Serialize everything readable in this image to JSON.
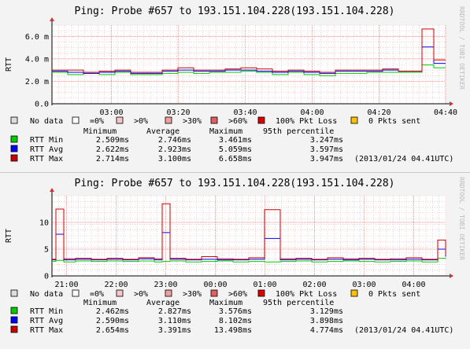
{
  "chart_data": [
    {
      "type": "line",
      "title": "Ping: Probe #657 to 193.151.104.228(193.151.104.228)",
      "ylabel": "RTT",
      "watermark": "RRDTOOL / TOBI OETIKER",
      "ylim": [
        0,
        7
      ],
      "xlim": [
        0,
        1
      ],
      "y_ticks": [
        {
          "value": 0,
          "label": "0.0"
        },
        {
          "value": 2,
          "label": "2.0 m"
        },
        {
          "value": 4,
          "label": "4.0 m"
        },
        {
          "value": 6,
          "label": "6.0 m"
        }
      ],
      "x_ticks": [
        {
          "value": 0.151,
          "label": "03:00"
        },
        {
          "value": 0.321,
          "label": "03:20"
        },
        {
          "value": 0.491,
          "label": "03:40"
        },
        {
          "value": 0.661,
          "label": "04:00"
        },
        {
          "value": 0.831,
          "label": "04:20"
        },
        {
          "value": 1.0,
          "label": "04:40"
        }
      ],
      "series": [
        {
          "name": "RTT Min",
          "color": "#00cc00",
          "x": [
            0,
            0.04,
            0.08,
            0.12,
            0.16,
            0.2,
            0.24,
            0.28,
            0.32,
            0.36,
            0.4,
            0.44,
            0.48,
            0.52,
            0.56,
            0.6,
            0.64,
            0.68,
            0.72,
            0.76,
            0.8,
            0.84,
            0.88,
            0.94,
            0.97,
            1.0
          ],
          "values": [
            2.8,
            2.6,
            2.7,
            2.6,
            2.8,
            2.6,
            2.6,
            2.7,
            2.8,
            2.7,
            2.8,
            2.8,
            2.9,
            2.8,
            2.6,
            2.8,
            2.6,
            2.5,
            2.7,
            2.7,
            2.8,
            2.8,
            2.8,
            3.46,
            3.2,
            3.2
          ]
        },
        {
          "name": "RTT Avg",
          "color": "#0000ff",
          "x": [
            0,
            0.04,
            0.08,
            0.12,
            0.16,
            0.2,
            0.24,
            0.28,
            0.32,
            0.36,
            0.4,
            0.44,
            0.48,
            0.52,
            0.56,
            0.6,
            0.64,
            0.68,
            0.72,
            0.76,
            0.8,
            0.84,
            0.88,
            0.94,
            0.97,
            1.0
          ],
          "values": [
            2.9,
            2.8,
            2.7,
            2.8,
            2.9,
            2.7,
            2.7,
            2.9,
            3.0,
            2.9,
            2.9,
            3.0,
            3.0,
            2.9,
            2.8,
            2.9,
            2.8,
            2.7,
            2.9,
            2.9,
            2.9,
            3.0,
            2.9,
            5.06,
            3.6,
            3.6
          ]
        },
        {
          "name": "RTT Max",
          "color": "#cc0000",
          "x": [
            0,
            0.04,
            0.08,
            0.12,
            0.16,
            0.2,
            0.24,
            0.28,
            0.32,
            0.36,
            0.4,
            0.44,
            0.48,
            0.52,
            0.56,
            0.6,
            0.64,
            0.68,
            0.72,
            0.76,
            0.8,
            0.84,
            0.88,
            0.94,
            0.97,
            1.0
          ],
          "values": [
            3.0,
            3.0,
            2.8,
            2.9,
            3.0,
            2.8,
            2.8,
            3.0,
            3.2,
            3.0,
            3.0,
            3.1,
            3.2,
            3.1,
            2.9,
            3.0,
            2.9,
            2.8,
            3.0,
            3.0,
            3.0,
            3.1,
            2.9,
            6.66,
            3.9,
            3.9
          ]
        }
      ],
      "legend_row": [
        {
          "label": "No data",
          "color": "#dddddd"
        },
        {
          "label": "=0%",
          "color": "#ffffff"
        },
        {
          "label": ">0%",
          "color": "#f5c6c6"
        },
        {
          "label": ">30%",
          "color": "#f0a0a0"
        },
        {
          "label": ">60%",
          "color": "#e06060"
        },
        {
          "label": "100% Pkt Loss",
          "color": "#dd0000"
        },
        {
          "label": "0 Pkts sent",
          "color": "#ffc000"
        }
      ],
      "stats_header": [
        "Minimum",
        "Average",
        "Maximum",
        "95th percentile"
      ],
      "stats": [
        {
          "name": "RTT Min",
          "color": "#00cc00",
          "min": "2.509ms",
          "avg": "2.746ms",
          "max": "3.461ms",
          "p95": "3.247ms",
          "note": ""
        },
        {
          "name": "RTT Avg",
          "color": "#0000ff",
          "min": "2.622ms",
          "avg": "2.923ms",
          "max": "5.059ms",
          "p95": "3.597ms",
          "note": ""
        },
        {
          "name": "RTT Max",
          "color": "#cc0000",
          "min": "2.714ms",
          "avg": "3.100ms",
          "max": "6.658ms",
          "p95": "3.947ms",
          "note": "(2013/01/24 04.41UTC)"
        }
      ]
    },
    {
      "type": "line",
      "title": "Ping: Probe #657 to 193.151.104.228(193.151.104.228)",
      "ylabel": "RTT",
      "watermark": "RRDTOOL / TOBI OETIKER",
      "ylim": [
        0,
        15
      ],
      "xlim": [
        0,
        1
      ],
      "y_ticks": [
        {
          "value": 0,
          "label": "0"
        },
        {
          "value": 5,
          "label": "5"
        },
        {
          "value": 10,
          "label": "10"
        }
      ],
      "x_ticks": [
        {
          "value": 0.037,
          "label": "21:00"
        },
        {
          "value": 0.163,
          "label": "22:00"
        },
        {
          "value": 0.289,
          "label": "23:00"
        },
        {
          "value": 0.415,
          "label": "00:00"
        },
        {
          "value": 0.541,
          "label": "01:00"
        },
        {
          "value": 0.667,
          "label": "02:00"
        },
        {
          "value": 0.793,
          "label": "03:00"
        },
        {
          "value": 0.919,
          "label": "04:00"
        }
      ],
      "series": [
        {
          "name": "RTT Min",
          "color": "#00cc00",
          "x": [
            0,
            0.01,
            0.03,
            0.06,
            0.1,
            0.14,
            0.18,
            0.22,
            0.26,
            0.28,
            0.3,
            0.34,
            0.38,
            0.42,
            0.46,
            0.5,
            0.54,
            0.58,
            0.62,
            0.66,
            0.7,
            0.74,
            0.78,
            0.82,
            0.86,
            0.9,
            0.94,
            0.98,
            1.0
          ],
          "values": [
            2.7,
            2.9,
            2.6,
            2.8,
            2.7,
            2.8,
            2.7,
            2.8,
            2.6,
            2.7,
            2.8,
            2.6,
            2.7,
            2.8,
            2.6,
            2.7,
            2.6,
            2.7,
            2.8,
            2.6,
            2.7,
            2.8,
            2.7,
            2.6,
            2.7,
            2.8,
            2.6,
            3.3,
            3.2
          ]
        },
        {
          "name": "RTT Avg",
          "color": "#0000ff",
          "x": [
            0,
            0.01,
            0.03,
            0.06,
            0.1,
            0.14,
            0.18,
            0.22,
            0.26,
            0.28,
            0.3,
            0.34,
            0.38,
            0.42,
            0.46,
            0.5,
            0.54,
            0.58,
            0.62,
            0.66,
            0.7,
            0.74,
            0.78,
            0.82,
            0.86,
            0.9,
            0.94,
            0.98,
            1.0
          ],
          "values": [
            3.0,
            7.8,
            3.0,
            3.1,
            3.0,
            3.1,
            3.0,
            3.2,
            3.0,
            8.1,
            3.1,
            3.0,
            3.1,
            3.0,
            3.0,
            3.1,
            7.0,
            3.0,
            3.1,
            3.0,
            3.1,
            3.0,
            3.1,
            3.0,
            3.0,
            3.1,
            3.0,
            5.0,
            3.6
          ]
        },
        {
          "name": "RTT Max",
          "color": "#cc0000",
          "x": [
            0,
            0.01,
            0.03,
            0.06,
            0.1,
            0.14,
            0.18,
            0.22,
            0.26,
            0.28,
            0.3,
            0.34,
            0.38,
            0.42,
            0.46,
            0.5,
            0.54,
            0.58,
            0.62,
            0.66,
            0.7,
            0.74,
            0.78,
            0.82,
            0.86,
            0.9,
            0.94,
            0.98,
            1.0
          ],
          "values": [
            3.1,
            12.5,
            3.2,
            3.3,
            3.1,
            3.3,
            3.1,
            3.4,
            3.2,
            13.5,
            3.3,
            3.1,
            3.6,
            3.2,
            3.1,
            3.4,
            12.4,
            3.2,
            3.3,
            3.1,
            3.4,
            3.2,
            3.3,
            3.1,
            3.2,
            3.4,
            3.1,
            6.7,
            3.9
          ]
        }
      ],
      "legend_row": [
        {
          "label": "No data",
          "color": "#dddddd"
        },
        {
          "label": "=0%",
          "color": "#ffffff"
        },
        {
          "label": ">0%",
          "color": "#f5c6c6"
        },
        {
          "label": ">30%",
          "color": "#f0a0a0"
        },
        {
          "label": ">60%",
          "color": "#e06060"
        },
        {
          "label": "100% Pkt Loss",
          "color": "#dd0000"
        },
        {
          "label": "0 Pkts sent",
          "color": "#ffc000"
        }
      ],
      "stats_header": [
        "Minimum",
        "Average",
        "Maximum",
        "95th percentile"
      ],
      "stats": [
        {
          "name": "RTT Min",
          "color": "#00cc00",
          "min": "2.462ms",
          "avg": "2.827ms",
          "max": "3.576ms",
          "p95": "3.129ms",
          "note": ""
        },
        {
          "name": "RTT Avg",
          "color": "#0000ff",
          "min": "2.590ms",
          "avg": "3.110ms",
          "max": "8.102ms",
          "p95": "3.898ms",
          "note": ""
        },
        {
          "name": "RTT Max",
          "color": "#cc0000",
          "min": "2.654ms",
          "avg": "3.391ms",
          "max": "13.498ms",
          "p95": "4.774ms",
          "note": "(2013/01/24 04.41UTC)"
        }
      ]
    }
  ]
}
